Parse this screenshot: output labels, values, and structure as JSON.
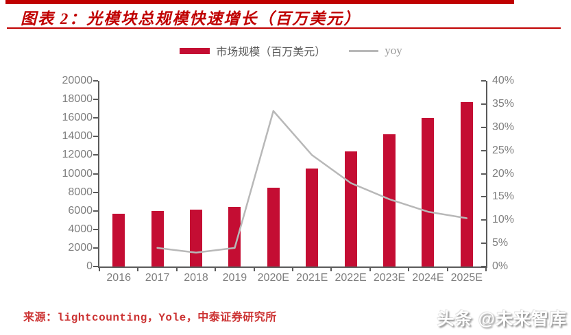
{
  "header": {
    "title": "图表 2：光模块总规模快速增长（百万美元）",
    "accent_color": "#C00000"
  },
  "legend": {
    "items": [
      {
        "label": "市场规模（百万美元）",
        "swatch": "bar",
        "color": "#C40D33"
      },
      {
        "label": "yoy",
        "swatch": "line",
        "color": "#b8b8b8"
      }
    ]
  },
  "chart_data": {
    "type": "bar",
    "categories": [
      "2016",
      "2017",
      "2018",
      "2019",
      "2020E",
      "2021E",
      "2022E",
      "2023E",
      "2024E",
      "2025E"
    ],
    "series": [
      {
        "name": "市场规模（百万美元）",
        "type": "bar",
        "axis": "left",
        "color": "#C40D33",
        "values": [
          5700,
          5950,
          6150,
          6400,
          8500,
          10550,
          12400,
          14250,
          16000,
          17700
        ]
      },
      {
        "name": "yoy",
        "type": "line",
        "axis": "right",
        "color": "#b8b8b8",
        "values": [
          null,
          4.0,
          3.0,
          4.0,
          33.5,
          24.0,
          18.0,
          14.5,
          11.8,
          10.4
        ]
      }
    ],
    "title": "光模块总规模快速增长（百万美元）",
    "xlabel": "",
    "ylabel_left": "",
    "ylabel_right": "",
    "left_axis": {
      "min": 0,
      "max": 20000,
      "step": 2000,
      "suffix": ""
    },
    "right_axis": {
      "min": 0,
      "max": 40,
      "step": 5,
      "suffix": "%"
    },
    "grid": false,
    "legend_position": "top"
  },
  "footer": {
    "source": "来源：lightcounting，Yole，中泰证券研究所",
    "watermark": "头条 @未来智库"
  }
}
